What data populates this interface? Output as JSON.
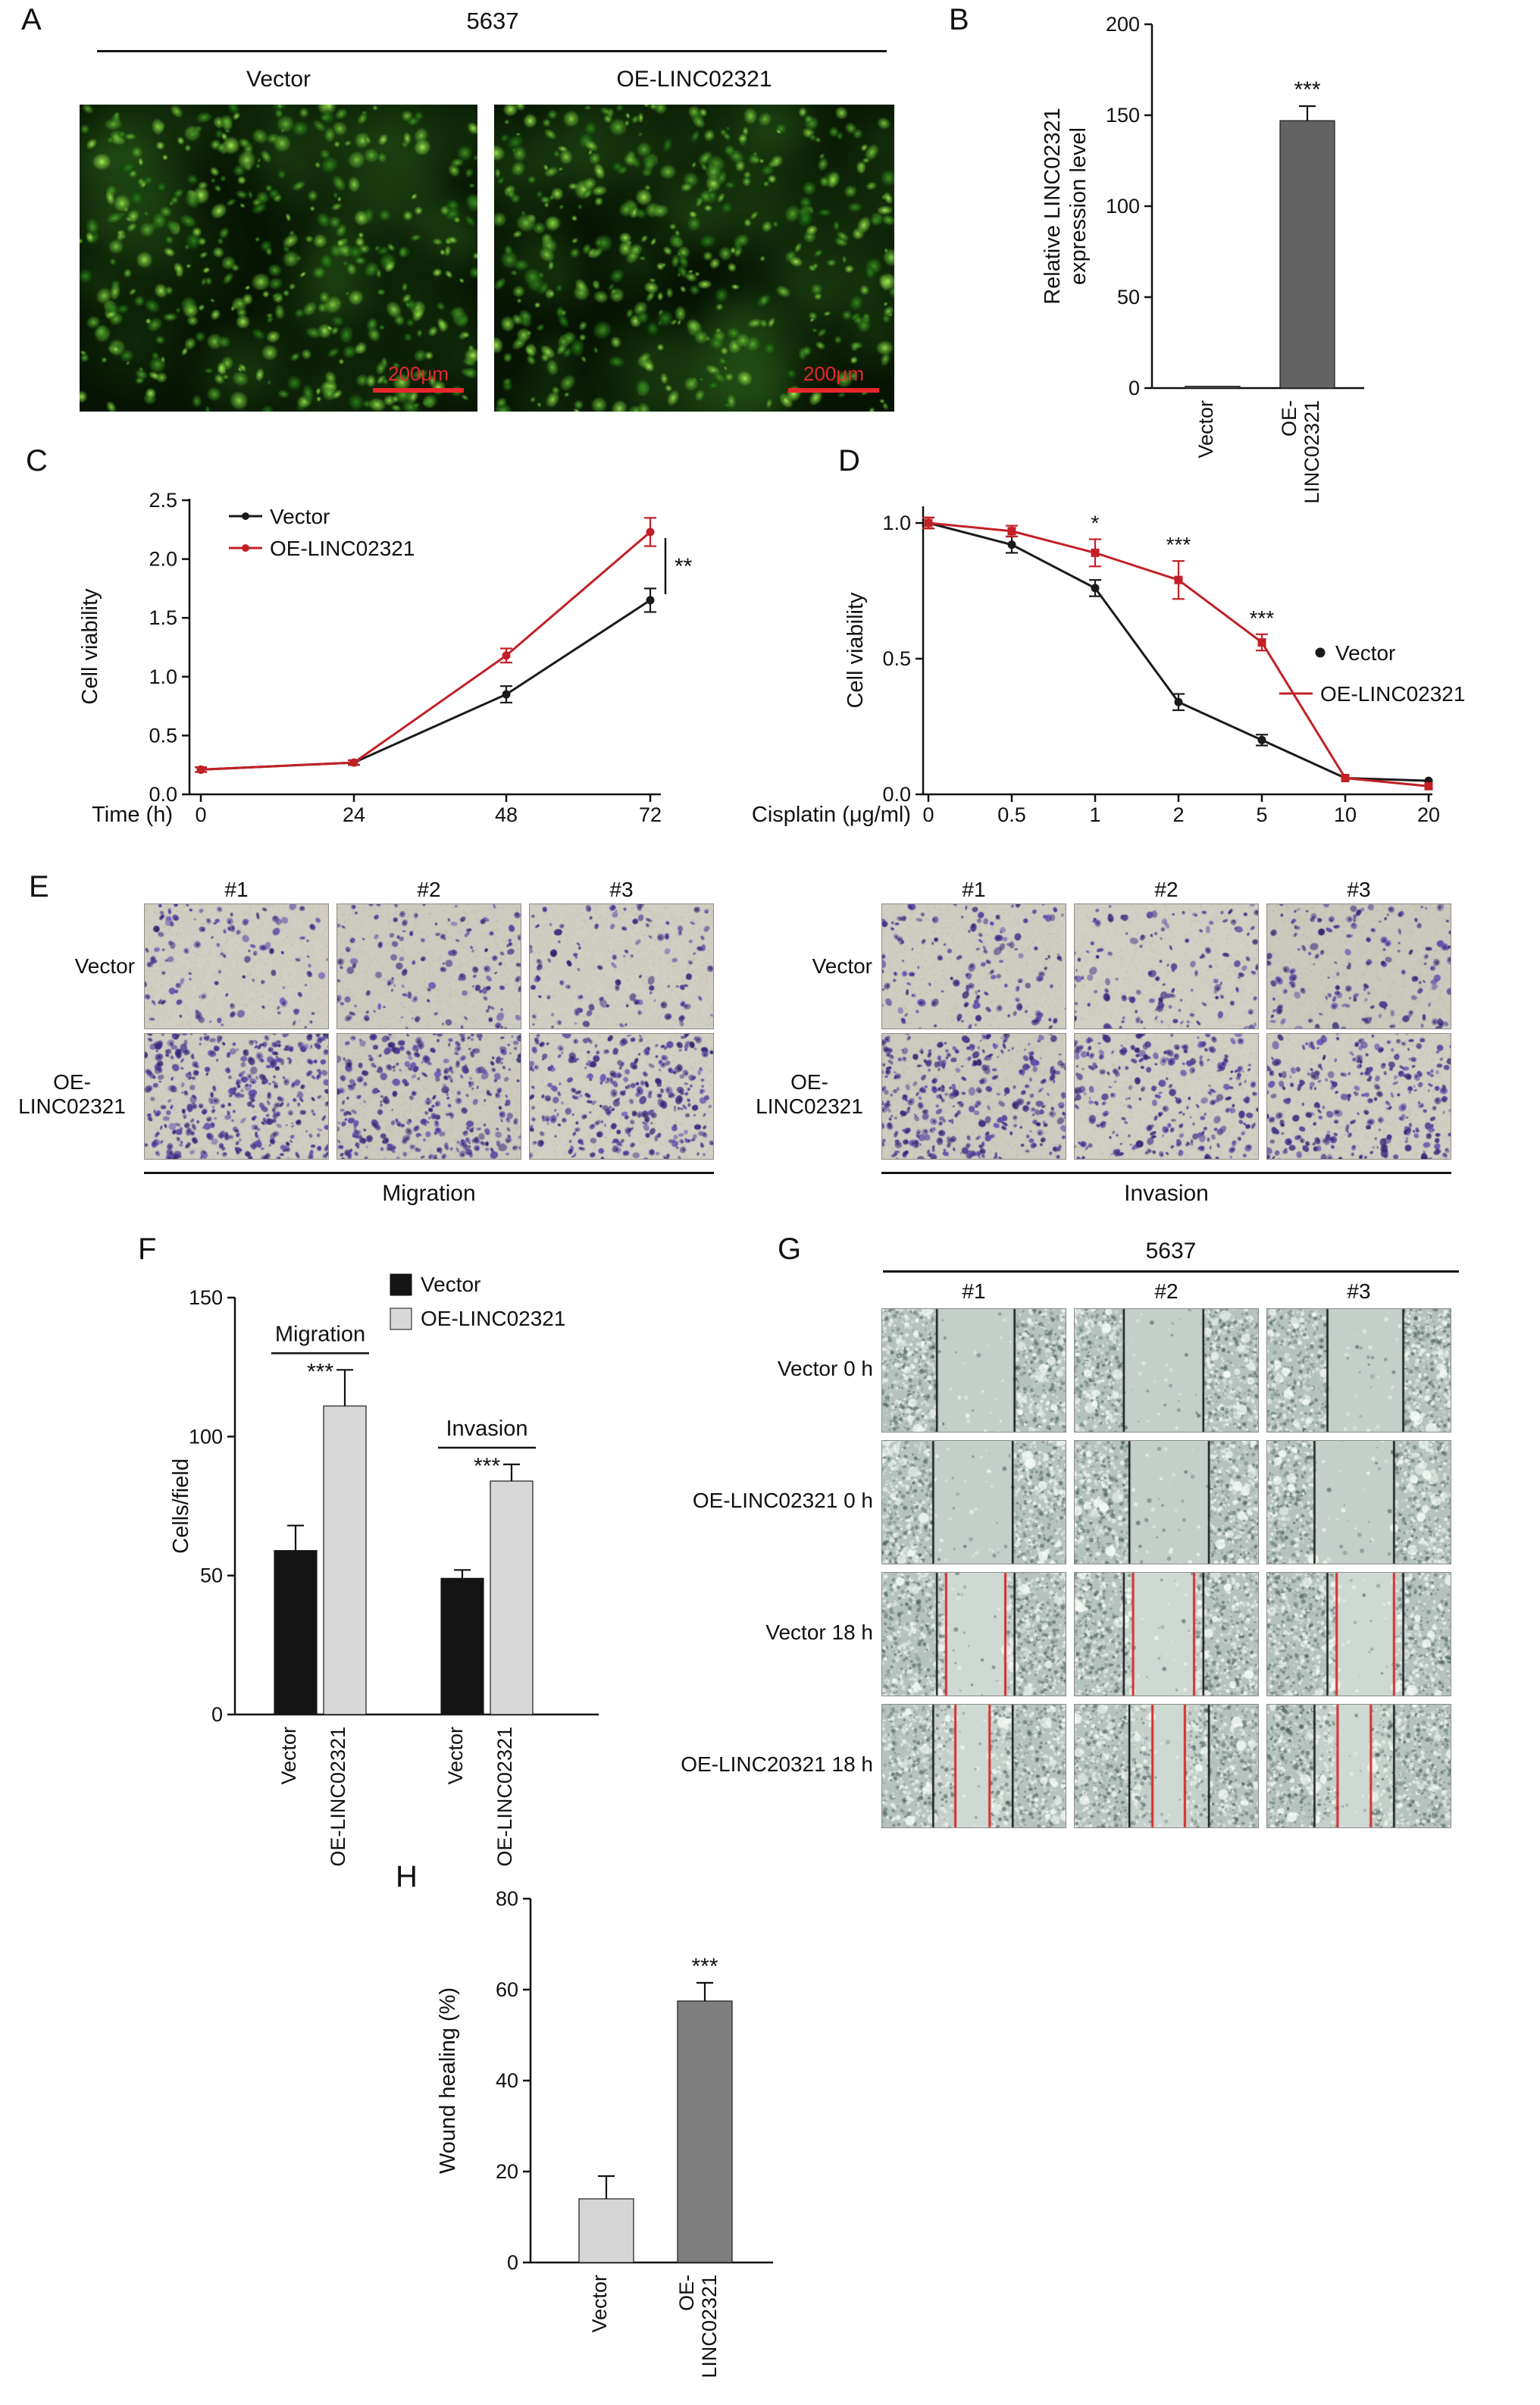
{
  "panelA": {
    "letter": "A",
    "cell_line": "5637",
    "col1": "Vector",
    "col2": "OE-LINC02321",
    "scale_bar": "200μm"
  },
  "panelB": {
    "letter": "B"
  },
  "panelC": {
    "letter": "C"
  },
  "panelD": {
    "letter": "D"
  },
  "panelE": {
    "letter": "E",
    "headers": [
      "#1",
      "#2",
      "#3"
    ],
    "row1": "Vector",
    "row2_line1": "OE-",
    "row2_line2": "LINC02321",
    "left_label": "Migration",
    "right_label": "Invasion"
  },
  "panelF": {
    "letter": "F"
  },
  "panelG": {
    "letter": "G",
    "cell_line": "5637",
    "headers": [
      "#1",
      "#2",
      "#3"
    ],
    "rows": [
      "Vector 0 h",
      "OE-LINC02321 0 h",
      "Vector 18 h",
      "OE-LINC20321 18 h"
    ]
  },
  "panelH": {
    "letter": "H"
  },
  "chart_data": [
    {
      "id": "B",
      "type": "bar",
      "ylabel_lines": [
        "Relative LINC02321",
        "expression level"
      ],
      "categories": [
        [
          "Vector"
        ],
        [
          "OE-",
          "LINC02321"
        ]
      ],
      "values": [
        1,
        147
      ],
      "errors": [
        0,
        8
      ],
      "bar_colors": [
        "#636363",
        "#636363"
      ],
      "ylim": [
        0,
        200
      ],
      "yticks": [
        0,
        50,
        100,
        150,
        200
      ],
      "annotations": [
        "",
        "***"
      ]
    },
    {
      "id": "C",
      "type": "line",
      "xlabel": "Time (h)",
      "ylabel": "Cell viability",
      "x_labels": [
        "0",
        "24",
        "48",
        "72"
      ],
      "yticks": [
        "0.0",
        "0.5",
        "1.0",
        "1.5",
        "2.0",
        "2.5"
      ],
      "ylim": [
        0,
        2.5
      ],
      "series": [
        {
          "name": "Vector",
          "color": "#1a1a1a",
          "marker": "circle",
          "values": [
            0.21,
            0.27,
            0.85,
            1.65
          ],
          "errors": [
            0.02,
            0.02,
            0.07,
            0.1
          ]
        },
        {
          "name": "OE-LINC02321",
          "color": "#c22026",
          "marker": "circle",
          "values": [
            0.21,
            0.27,
            1.18,
            2.23
          ],
          "errors": [
            0.02,
            0.02,
            0.06,
            0.12
          ]
        }
      ],
      "significance": "**",
      "legend_position": "top-left"
    },
    {
      "id": "D",
      "type": "line",
      "xlabel": "Cisplatin (μg/ml)",
      "ylabel": "Cell viability",
      "x_labels": [
        "0",
        "0.5",
        "1",
        "2",
        "5",
        "10",
        "20"
      ],
      "yticks": [
        "0.0",
        "0.5",
        "1.0"
      ],
      "ylim": [
        0,
        1
      ],
      "series": [
        {
          "name": "Vector",
          "color": "#1a1a1a",
          "marker": "circle",
          "values": [
            1,
            0.92,
            0.76,
            0.34,
            0.2,
            0.06,
            0.05
          ],
          "errors": [
            0.02,
            0.03,
            0.03,
            0.03,
            0.02,
            0.01,
            0.01
          ]
        },
        {
          "name": "OE-LINC02321",
          "color": "#c22026",
          "marker": "square",
          "values": [
            1,
            0.97,
            0.89,
            0.79,
            0.56,
            0.06,
            0.03
          ],
          "errors": [
            0.02,
            0.02,
            0.05,
            0.07,
            0.03,
            0.01,
            0.01
          ],
          "point_annotations": [
            "",
            "",
            "*",
            "***",
            "***",
            "",
            ""
          ]
        }
      ],
      "legend_position": "right"
    },
    {
      "id": "F",
      "type": "grouped-bar",
      "ylabel": "Cells/field",
      "ylim": [
        0,
        150
      ],
      "yticks": [
        0,
        50,
        100,
        150
      ],
      "legend": [
        "Vector",
        "OE-LINC02321"
      ],
      "series_colors": [
        "#141414",
        "#d8d8d8"
      ],
      "groups": [
        {
          "name": "Migration",
          "significance": "***"
        },
        {
          "name": "Invasion",
          "significance": "***"
        }
      ],
      "bar_labels": [
        "Vector",
        "OE-LINC02321",
        "Vector",
        "OE-LINC02321"
      ],
      "values": [
        59,
        111,
        49,
        84
      ],
      "errors": [
        9,
        13,
        3,
        6
      ]
    },
    {
      "id": "H",
      "type": "bar",
      "ylabel_lines": [
        "Wound healing (%)"
      ],
      "categories": [
        [
          "Vector"
        ],
        [
          "OE-",
          "LINC02321"
        ]
      ],
      "values": [
        14,
        57.5
      ],
      "errors": [
        5,
        4
      ],
      "bar_colors": [
        "#d6d6d6",
        "#7f7f7f"
      ],
      "ylim": [
        0,
        80
      ],
      "yticks": [
        0,
        20,
        40,
        60,
        80
      ],
      "annotations": [
        "",
        "***"
      ]
    }
  ]
}
